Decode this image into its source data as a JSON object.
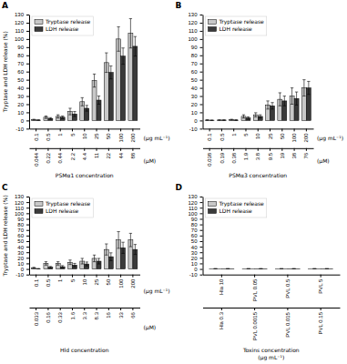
{
  "chart_data": [
    {
      "type": "bar",
      "title": "A",
      "x_label": "PSMα1 concentration",
      "y_label": "Tryptase and LDH release (%)",
      "categories": [
        "0.1",
        "0.5",
        "1",
        "5",
        "10",
        "25",
        "50",
        "100",
        "200"
      ],
      "x2_categories": [
        "0.044",
        "0.22",
        "0.44",
        "2.2",
        "4.4",
        "11",
        "22",
        "44",
        "88"
      ],
      "annotations": [
        "(μg mL⁻¹)",
        "(μM)"
      ],
      "series": [
        {
          "name": "Tryptase release",
          "color": "#c8c8c8",
          "values": [
            1.0,
            4.0,
            5.0,
            11.0,
            23.0,
            49.0,
            71.0,
            100.0,
            107.0
          ],
          "errors": [
            0.5,
            1.5,
            2.0,
            4.0,
            5.0,
            8.0,
            12.0,
            15.0,
            18.0
          ]
        },
        {
          "name": "LDH release",
          "color": "#3a3a3a",
          "values": [
            0.5,
            2.5,
            4.0,
            8.0,
            15.0,
            25.0,
            59.0,
            79.0,
            91.0
          ],
          "errors": [
            0.3,
            1.0,
            1.5,
            3.0,
            3.5,
            5.0,
            8.0,
            10.0,
            12.0
          ]
        }
      ],
      "ylim": [
        -10,
        130
      ],
      "yticks": [
        -10,
        0,
        10,
        20,
        30,
        40,
        50,
        60,
        70,
        80,
        90,
        100,
        110,
        120,
        130
      ],
      "legend": "upper left"
    },
    {
      "type": "bar",
      "title": "B",
      "x_label": "PSMα3 concentration",
      "categories": [
        "0.1",
        "0.5",
        "1",
        "5",
        "10",
        "25",
        "50",
        "100",
        "200"
      ],
      "x2_categories": [
        "0.038",
        "0.19",
        "0.38",
        "1.9",
        "3.8",
        "9.5",
        "19",
        "38",
        "76"
      ],
      "annotations": [
        "(μg mL⁻¹)",
        "(μM)"
      ],
      "series": [
        {
          "name": "Tryptase release",
          "color": "#c8c8c8",
          "values": [
            0.5,
            0.5,
            1.0,
            5.0,
            7.0,
            19.0,
            26.0,
            30.0,
            40.0
          ],
          "errors": [
            0.3,
            0.3,
            0.5,
            2.0,
            2.5,
            5.0,
            8.0,
            10.0,
            10.0
          ]
        },
        {
          "name": "LDH release",
          "color": "#3a3a3a",
          "values": [
            0.3,
            0.5,
            0.5,
            3.0,
            5.0,
            18.0,
            24.0,
            27.0,
            40.0
          ],
          "errors": [
            0.2,
            0.3,
            0.3,
            1.5,
            2.0,
            4.0,
            6.0,
            8.0,
            8.0
          ]
        }
      ],
      "ylim": [
        -10,
        130
      ],
      "yticks": [
        -10,
        0,
        10,
        20,
        30,
        40,
        50,
        60,
        70,
        80,
        90,
        100,
        110,
        120,
        130
      ],
      "legend": "upper left"
    },
    {
      "type": "bar",
      "title": "C",
      "x_label": "Hld concentration",
      "y_label": "Tryptase and LDH release (%)",
      "categories": [
        "0.1",
        "0.5",
        "1",
        "5",
        "10",
        "25",
        "50",
        "100",
        "200"
      ],
      "x2_categories": [
        "0.033",
        "0.16",
        "0.33",
        "1.6",
        "3.3",
        "8.3",
        "16",
        "33",
        "66"
      ],
      "annotations": [
        "(μg mL⁻¹)",
        "(μM)"
      ],
      "series": [
        {
          "name": "Tryptase release",
          "color": "#c8c8c8",
          "values": [
            2.0,
            10.0,
            10.0,
            12.0,
            14.0,
            19.0,
            35.0,
            52.0,
            52.0
          ],
          "errors": [
            1.0,
            3.0,
            3.0,
            4.0,
            5.0,
            6.0,
            10.0,
            15.0,
            12.0
          ]
        },
        {
          "name": "LDH release",
          "color": "#3a3a3a",
          "values": [
            0.5,
            3.0,
            4.0,
            7.0,
            9.0,
            14.0,
            22.0,
            38.0,
            35.0
          ],
          "errors": [
            0.3,
            1.5,
            2.0,
            3.0,
            3.5,
            5.0,
            7.0,
            10.0,
            9.0
          ]
        }
      ],
      "ylim": [
        -10,
        130
      ],
      "yticks": [
        -10,
        0,
        10,
        20,
        30,
        40,
        50,
        60,
        70,
        80,
        90,
        100,
        110,
        120,
        130
      ],
      "legend": "upper left"
    },
    {
      "type": "bar",
      "title": "D",
      "x_label": "Toxins concentration\n(μg mL⁻¹)",
      "categories": [
        "Hla 10",
        "PVL 0.05",
        "PVL 0.5",
        "PVL 5"
      ],
      "x2_categories": [
        "Hla 0.3",
        "PVL 0.0015",
        "PVL 0.015",
        "PVL 0.15"
      ],
      "series": [
        {
          "name": "Tryptase release",
          "color": "#c8c8c8",
          "values": [
            0.5,
            0.5,
            0.5,
            0.5
          ],
          "errors": [
            0.3,
            0.2,
            0.2,
            0.2
          ]
        },
        {
          "name": "LDH release",
          "color": "#3a3a3a",
          "values": [
            0.5,
            0.5,
            0.5,
            0.5
          ],
          "errors": [
            0.2,
            0.2,
            0.2,
            0.2
          ]
        }
      ],
      "ylim": [
        -10,
        130
      ],
      "yticks": [
        -10,
        0,
        10,
        20,
        30,
        40,
        50,
        60,
        70,
        80,
        90,
        100,
        110,
        120,
        130
      ],
      "legend": "upper left"
    }
  ]
}
